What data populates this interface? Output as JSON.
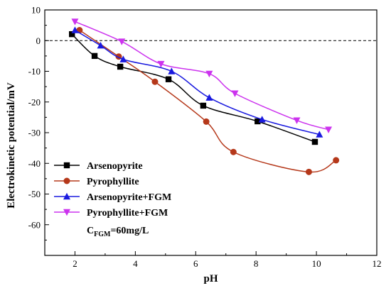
{
  "chart_data": {
    "type": "line",
    "xlabel": "pH",
    "ylabel": "Electrokinetic potential/mV",
    "xlim": [
      1,
      12
    ],
    "ylim": [
      -70,
      10
    ],
    "x_ticks": [
      2,
      4,
      6,
      8,
      10,
      12
    ],
    "y_ticks": [
      10,
      0,
      -10,
      -20,
      -30,
      -40,
      -50,
      -60
    ],
    "reference_line": {
      "y": 0,
      "style": "dashed"
    },
    "grid": false,
    "legend_position": "lower-left",
    "series": [
      {
        "name": "Arsenopyrite",
        "color": "#000000",
        "marker": "square",
        "x": [
          1.9,
          2.65,
          3.5,
          5.1,
          6.25,
          8.05,
          9.95
        ],
        "y": [
          2.1,
          -5.0,
          -8.5,
          -12.6,
          -21.2,
          -26.3,
          -33.0
        ]
      },
      {
        "name": "Pyrophyllite",
        "color": "#b5381a",
        "marker": "circle",
        "x": [
          2.15,
          3.45,
          4.65,
          6.35,
          7.25,
          9.75,
          10.65
        ],
        "y": [
          3.4,
          -5.2,
          -13.4,
          -26.4,
          -36.3,
          -42.8,
          -39.0
        ]
      },
      {
        "name": "Arsenopyrite+FGM",
        "color": "#1a1adf",
        "marker": "triangle-up",
        "x": [
          2.0,
          2.85,
          3.6,
          5.2,
          6.45,
          8.2,
          10.1
        ],
        "y": [
          3.4,
          -1.6,
          -6.1,
          -10.0,
          -18.6,
          -25.7,
          -30.6
        ]
      },
      {
        "name": "Pyrophyllite+FGM",
        "color": "#cc33ee",
        "marker": "triangle-down",
        "x": [
          2.0,
          3.55,
          4.85,
          6.45,
          7.3,
          9.35,
          10.4
        ],
        "y": [
          6.2,
          -0.3,
          -7.6,
          -10.8,
          -17.2,
          -26.0,
          -29.0
        ]
      }
    ],
    "annotation": {
      "main": "C",
      "subscript": "FGM",
      "rest": "=60mg/L"
    }
  }
}
